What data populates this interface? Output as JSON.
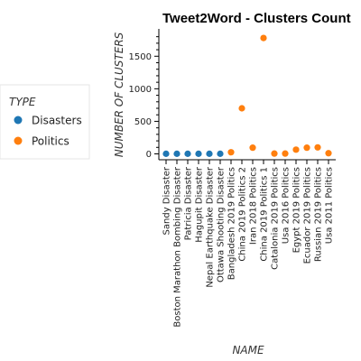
{
  "chart_data": {
    "type": "scatter",
    "title": "Tweet2Word - Clusters Count",
    "xlabel": "NAME",
    "ylabel": "NUMBER OF CLUSTERS",
    "ylim": [
      -90,
      1920
    ],
    "yticks": [
      0,
      500,
      1000,
      1500
    ],
    "grid": false,
    "legend_title": "TYPE",
    "legend_position": "left",
    "categories": [
      "Sandy Disaster",
      "Boston Marathon Bombing Disaster",
      "Patricia Disaster",
      "Hagupit Disaster",
      "Nepal Earthquake Disaster",
      "Ottawa Shooting Disaster",
      "Bangladesh 2019 Politics",
      "China 2019 Politics 2",
      "Iran 2018 Politics",
      "China 2019 Politics 1",
      "Catalonia 2019 Politics",
      "Usa 2016 Politics",
      "Egypt 2019 Politics",
      "Ecuador 2019 Politics",
      "Russian 2019 Politics",
      "Usa 2011 Politics"
    ],
    "series": [
      {
        "name": "Disasters",
        "color": "#1f77b4",
        "points": [
          {
            "x": "Sandy Disaster",
            "y": 2
          },
          {
            "x": "Boston Marathon Bombing Disaster",
            "y": 2
          },
          {
            "x": "Patricia Disaster",
            "y": 2
          },
          {
            "x": "Hagupit Disaster",
            "y": 2
          },
          {
            "x": "Nepal Earthquake Disaster",
            "y": 2
          },
          {
            "x": "Ottawa Shooting Disaster",
            "y": 2
          }
        ]
      },
      {
        "name": "Politics",
        "color": "#ff7f0e",
        "points": [
          {
            "x": "Bangladesh 2019 Politics",
            "y": 25
          },
          {
            "x": "China 2019 Politics 2",
            "y": 700
          },
          {
            "x": "Iran 2018 Politics",
            "y": 95
          },
          {
            "x": "China 2019 Politics 1",
            "y": 1780
          },
          {
            "x": "Catalonia 2019 Politics",
            "y": 5
          },
          {
            "x": "Usa 2016 Politics",
            "y": 5
          },
          {
            "x": "Egypt 2019 Politics",
            "y": 65
          },
          {
            "x": "Ecuador 2019 Politics",
            "y": 95
          },
          {
            "x": "Russian 2019 Politics",
            "y": 100
          },
          {
            "x": "Usa 2011 Politics",
            "y": 10
          }
        ]
      }
    ]
  }
}
